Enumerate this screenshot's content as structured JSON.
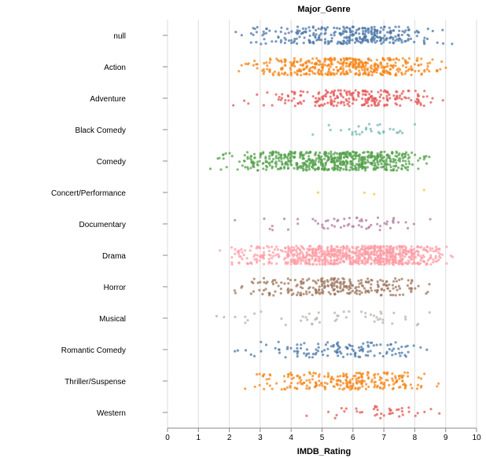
{
  "chart_data": {
    "type": "scatter",
    "title": "Major_Genre",
    "xlabel": "IMDB_Rating",
    "ylabel": "",
    "xlim": [
      0,
      10
    ],
    "x_ticks": [
      "0",
      "1",
      "2",
      "3",
      "4",
      "5",
      "6",
      "7",
      "8",
      "9",
      "10"
    ],
    "grid": true,
    "legend": "none",
    "categories": [
      "null",
      "Action",
      "Adventure",
      "Black Comedy",
      "Comedy",
      "Concert/Performance",
      "Documentary",
      "Drama",
      "Horror",
      "Musical",
      "Romantic Comedy",
      "Thriller/Suspense",
      "Western"
    ],
    "series": [
      {
        "category": "null",
        "color": "#4c78a8",
        "min": 2.2,
        "max": 9.2,
        "mode": 6.4,
        "n": 330,
        "jitter": 11
      },
      {
        "category": "Action",
        "color": "#f58518",
        "min": 2.3,
        "max": 9.0,
        "mode": 6.2,
        "n": 430,
        "jitter": 11
      },
      {
        "category": "Adventure",
        "color": "#e45756",
        "min": 2.1,
        "max": 8.9,
        "mode": 6.5,
        "n": 230,
        "jitter": 10
      },
      {
        "category": "Black Comedy",
        "color": "#72b7b2",
        "min": 4.7,
        "max": 8.0,
        "mode": 6.9,
        "n": 30,
        "jitter": 7
      },
      {
        "category": "Comedy",
        "color": "#54a24b",
        "min": 1.4,
        "max": 8.5,
        "mode": 5.9,
        "n": 620,
        "jitter": 12
      },
      {
        "category": "Concert/Performance",
        "color": "#eeca3b",
        "min": 4.9,
        "max": 8.3,
        "mode": 6.0,
        "n": 4,
        "jitter": 4
      },
      {
        "category": "Documentary",
        "color": "#b279a2",
        "min": 2.2,
        "max": 8.5,
        "mode": 7.4,
        "n": 60,
        "jitter": 8
      },
      {
        "category": "Drama",
        "color": "#ff9da6",
        "min": 1.7,
        "max": 9.2,
        "mode": 6.9,
        "n": 850,
        "jitter": 12
      },
      {
        "category": "Horror",
        "color": "#9d755d",
        "min": 2.2,
        "max": 8.5,
        "mode": 5.6,
        "n": 260,
        "jitter": 11
      },
      {
        "category": "Musical",
        "color": "#bab0ac",
        "min": 1.6,
        "max": 8.5,
        "mode": 6.8,
        "n": 50,
        "jitter": 9
      },
      {
        "category": "Romantic Comedy",
        "color": "#4c78a8",
        "min": 2.2,
        "max": 8.4,
        "mode": 5.9,
        "n": 130,
        "jitter": 10
      },
      {
        "category": "Thriller/Suspense",
        "color": "#f58518",
        "min": 2.5,
        "max": 8.8,
        "mode": 6.3,
        "n": 250,
        "jitter": 11
      },
      {
        "category": "Western",
        "color": "#e45756",
        "min": 4.5,
        "max": 8.8,
        "mode": 6.9,
        "n": 40,
        "jitter": 8
      }
    ]
  }
}
